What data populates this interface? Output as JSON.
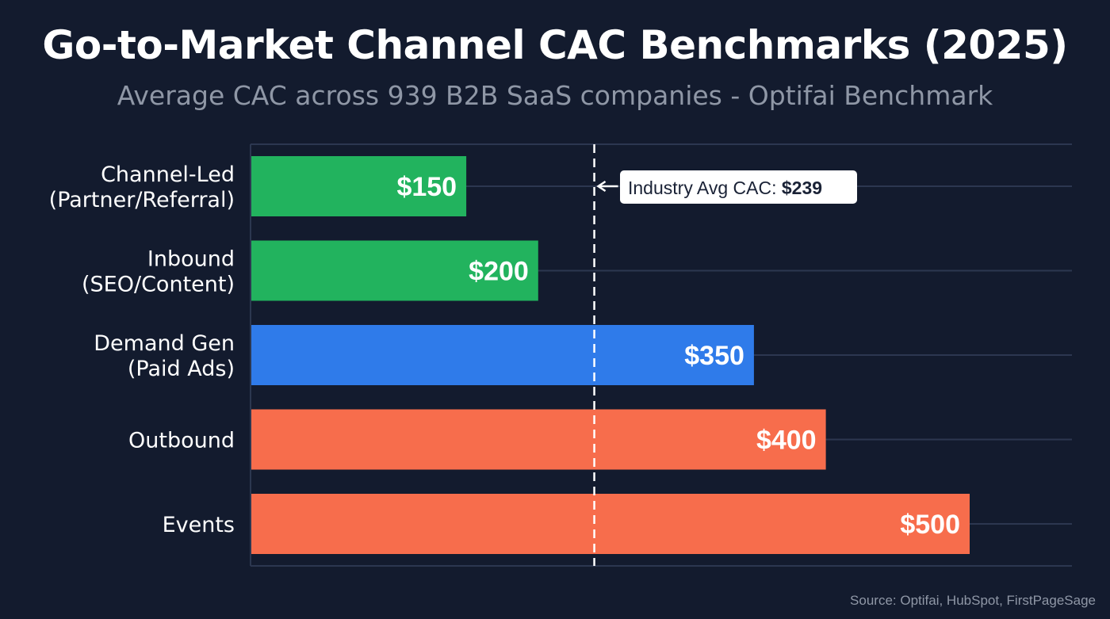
{
  "chart_data": {
    "type": "bar",
    "orientation": "horizontal",
    "title": "Go-to-Market Channel CAC Benchmarks (2025)",
    "subtitle": "Average CAC across 939 B2B SaaS companies - Optifai Benchmark",
    "categories": [
      [
        "Channel-Led",
        "(Partner/Referral)"
      ],
      [
        "Inbound",
        "(SEO/Content)"
      ],
      [
        "Demand Gen",
        "(Paid Ads)"
      ],
      [
        "Outbound"
      ],
      [
        "Events"
      ]
    ],
    "values": [
      150,
      200,
      350,
      400,
      500
    ],
    "value_labels": [
      "$150",
      "$200",
      "$350",
      "$400",
      "$500"
    ],
    "colors": [
      "#22b35e",
      "#22b35e",
      "#2f7bea",
      "#f76d4c",
      "#f76d4c"
    ],
    "xlim": [
      0,
      575
    ],
    "grid": true,
    "reference_line": {
      "value": 239,
      "label": "Industry Avg CAC: ",
      "value_label": "$239"
    },
    "source": "Source: Optifai, HubSpot, FirstPageSage"
  }
}
